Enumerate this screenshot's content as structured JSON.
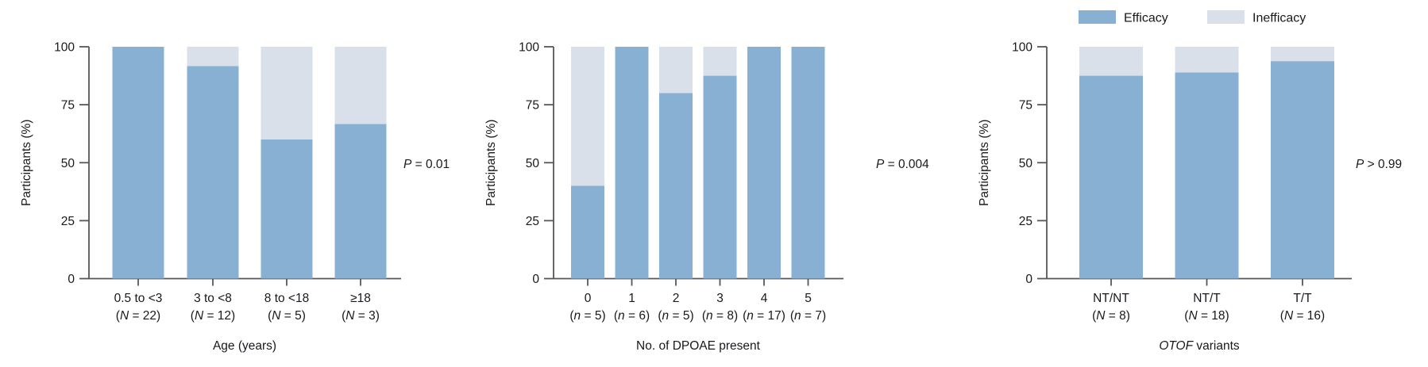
{
  "figure": {
    "description": "Three stacked bar charts of treatment efficacy by subgroup",
    "ylabel": "Participants (%)"
  },
  "legend": {
    "items": [
      {
        "label": "Efficacy",
        "color": "#87B0D2"
      },
      {
        "label": "Inefficacy",
        "color": "#D9E0E9"
      }
    ]
  },
  "colors": {
    "efficacy": "#87B0D2",
    "inefficacy": "#D9E0E9",
    "axis": "#54575a",
    "text": "#17191c"
  },
  "chart_data": [
    {
      "type": "bar",
      "stacked": true,
      "id": "age",
      "ylabel": "Participants (%)",
      "ylim": [
        0,
        100
      ],
      "yticks": [
        0,
        25,
        50,
        75,
        100
      ],
      "xlabel": {
        "italic": "",
        "text": "Age (years)"
      },
      "p_value": {
        "italic": "P",
        "text": " = 0.01"
      },
      "categories": [
        {
          "label": "0.5 to <3",
          "count_prefix": "(",
          "count_italic": "N",
          "count_suffix": " = 22)"
        },
        {
          "label": "3 to <8",
          "count_prefix": "(",
          "count_italic": "N",
          "count_suffix": " = 12)"
        },
        {
          "label": "8 to <18",
          "count_prefix": "(",
          "count_italic": "N",
          "count_suffix": " = 5)"
        },
        {
          "label": "≥18",
          "count_prefix": "(",
          "count_italic": "N",
          "count_suffix": " = 3)"
        }
      ],
      "series": [
        {
          "name": "Efficacy",
          "values": [
            100,
            91.7,
            60,
            66.7
          ]
        },
        {
          "name": "Inefficacy",
          "values": [
            0,
            8.3,
            40,
            33.3
          ]
        }
      ]
    },
    {
      "type": "bar",
      "stacked": true,
      "id": "dpoae",
      "ylabel": "Participants (%)",
      "ylim": [
        0,
        100
      ],
      "yticks": [
        0,
        25,
        50,
        75,
        100
      ],
      "xlabel": {
        "italic": "",
        "text": "No. of DPOAE present"
      },
      "p_value": {
        "italic": "P",
        "text": " = 0.004"
      },
      "categories": [
        {
          "label": "0",
          "count_prefix": "(",
          "count_italic": "n",
          "count_suffix": " = 5)"
        },
        {
          "label": "1",
          "count_prefix": "(",
          "count_italic": "n",
          "count_suffix": " = 6)"
        },
        {
          "label": "2",
          "count_prefix": "(",
          "count_italic": "n",
          "count_suffix": " = 5)"
        },
        {
          "label": "3",
          "count_prefix": "(",
          "count_italic": "n",
          "count_suffix": " = 8)"
        },
        {
          "label": "4",
          "count_prefix": "(",
          "count_italic": "n",
          "count_suffix": " = 17)"
        },
        {
          "label": "5",
          "count_prefix": "(",
          "count_italic": "n",
          "count_suffix": " = 7)"
        }
      ],
      "series": [
        {
          "name": "Efficacy",
          "values": [
            40,
            100,
            80,
            87.5,
            100,
            100
          ]
        },
        {
          "name": "Inefficacy",
          "values": [
            60,
            0,
            20,
            12.5,
            0,
            0
          ]
        }
      ]
    },
    {
      "type": "bar",
      "stacked": true,
      "id": "otof",
      "ylabel": "Participants (%)",
      "ylim": [
        0,
        100
      ],
      "yticks": [
        0,
        25,
        50,
        75,
        100
      ],
      "xlabel": {
        "italic": "OTOF",
        "text": " variants"
      },
      "p_value": {
        "italic": "P",
        "text": " > 0.99"
      },
      "categories": [
        {
          "label": "NT/NT",
          "count_prefix": "(",
          "count_italic": "N",
          "count_suffix": " = 8)"
        },
        {
          "label": "NT/T",
          "count_prefix": "(",
          "count_italic": "N",
          "count_suffix": " = 18)"
        },
        {
          "label": "T/T",
          "count_prefix": "(",
          "count_italic": "N",
          "count_suffix": " = 16)"
        }
      ],
      "series": [
        {
          "name": "Efficacy",
          "values": [
            87.5,
            88.9,
            93.8
          ]
        },
        {
          "name": "Inefficacy",
          "values": [
            12.5,
            11.1,
            6.2
          ]
        }
      ]
    }
  ]
}
